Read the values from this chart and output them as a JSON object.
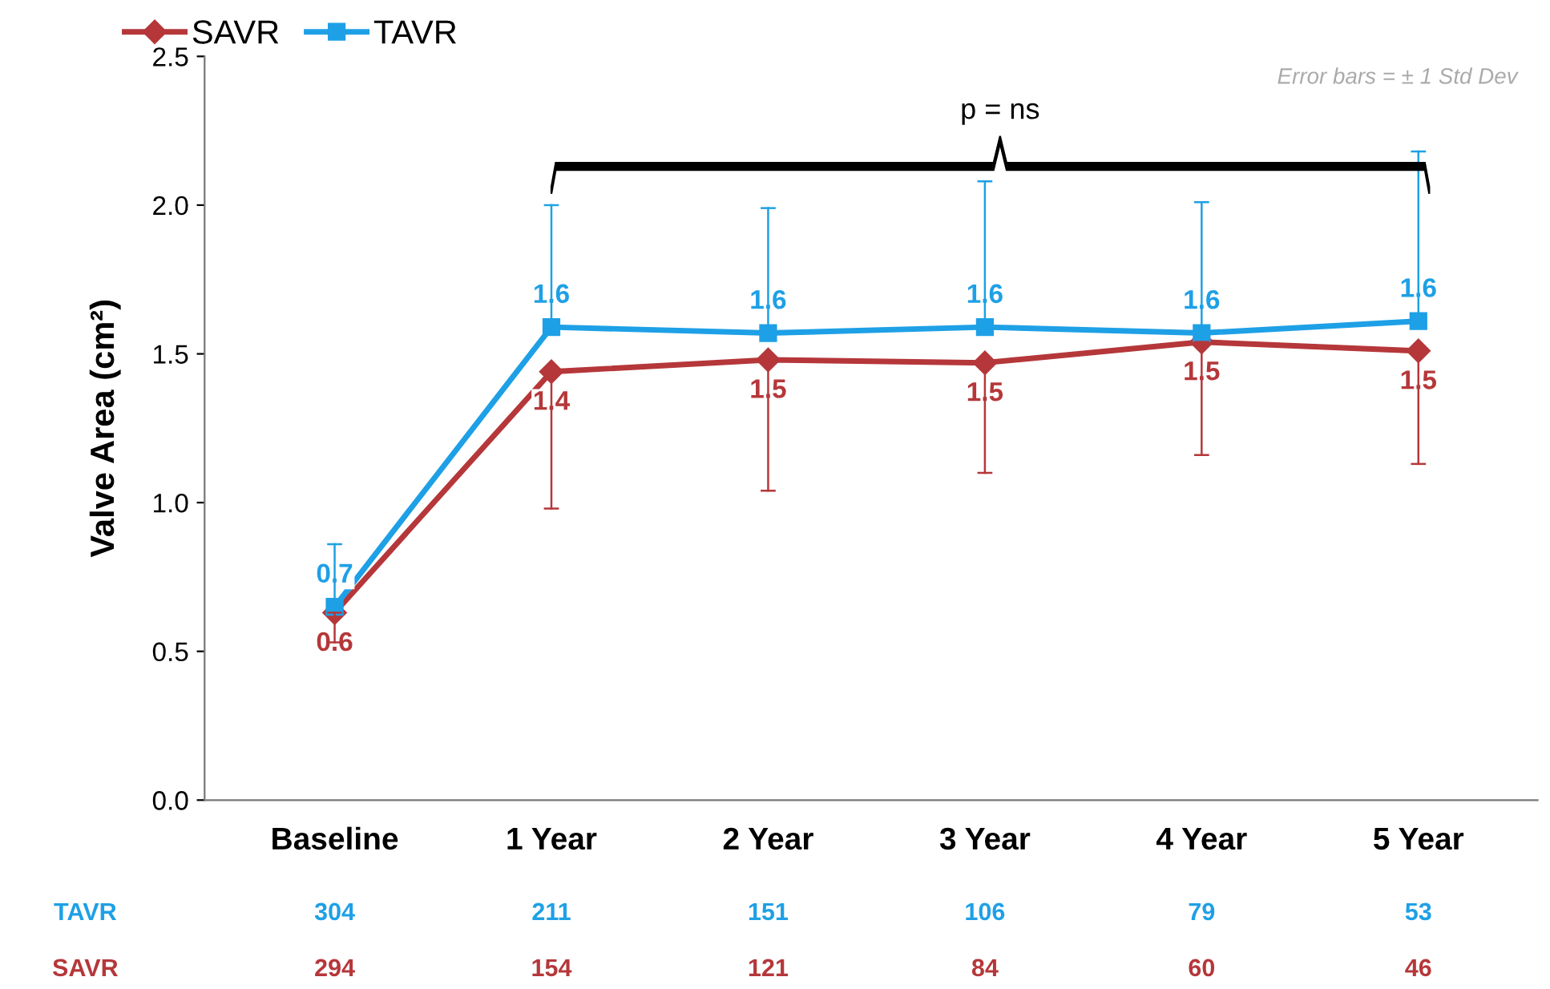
{
  "chart_data": {
    "type": "line",
    "ylabel": "Valve Area (cm²)",
    "categories": [
      "Baseline",
      "1 Year",
      "2 Year",
      "3 Year",
      "4 Year",
      "5 Year"
    ],
    "ylim": [
      0,
      2.5
    ],
    "yticks": [
      {
        "value": 0,
        "label": "0.0"
      },
      {
        "value": 0.5,
        "label": "0.5"
      },
      {
        "value": 1,
        "label": "1.0"
      },
      {
        "value": 1.5,
        "label": "1.5"
      },
      {
        "value": 2,
        "label": "2.0"
      },
      {
        "value": 2.5,
        "label": "2.5"
      }
    ],
    "grid": false,
    "legend": "top left",
    "line_style": "solid",
    "series": [
      {
        "name": "SAVR",
        "color": "#b5373a",
        "marker": "diamond",
        "values": [
          0.63,
          1.44,
          1.48,
          1.47,
          1.54,
          1.51
        ],
        "value_labels": [
          "0.6",
          "1.4",
          "1.5",
          "1.5",
          "1.5",
          "1.5"
        ],
        "errors": [
          [
            0.53,
            0.63
          ],
          [
            0.98,
            1.44
          ],
          [
            1.04,
            1.48
          ],
          [
            1.1,
            1.47
          ],
          [
            1.16,
            1.54
          ],
          [
            1.13,
            1.51
          ]
        ]
      },
      {
        "name": "TAVR",
        "color": "#1ea0e6",
        "marker": "square",
        "values": [
          0.65,
          1.59,
          1.57,
          1.59,
          1.57,
          1.61
        ],
        "value_labels": [
          "0.7",
          "1.6",
          "1.6",
          "1.6",
          "1.6",
          "1.6"
        ],
        "errors": [
          [
            0.65,
            0.86
          ],
          [
            1.59,
            2.0
          ],
          [
            1.57,
            1.99
          ],
          [
            1.59,
            2.08
          ],
          [
            1.57,
            2.01
          ],
          [
            1.61,
            2.18
          ]
        ]
      }
    ],
    "annotations": [
      "p = ns",
      "Error bars = ± 1 Std Dev",
      "TAVR",
      "304",
      "211",
      "151",
      "106",
      "79",
      "53",
      "SAVR",
      "294",
      "154",
      "121",
      "84",
      "60",
      "46"
    ]
  }
}
